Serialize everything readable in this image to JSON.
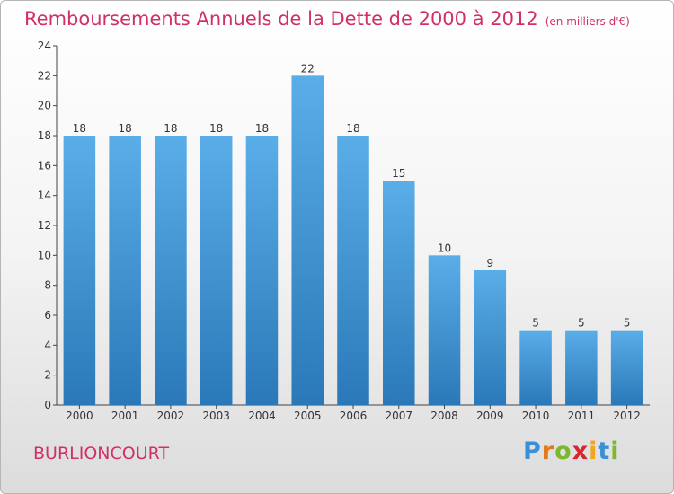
{
  "title": {
    "main": "Remboursements Annuels de la Dette de 2000 à 2012",
    "unit": "(en milliers d'€)"
  },
  "town": "BURLIONCOURT",
  "logo": {
    "letters": [
      "P",
      "r",
      "o",
      "x",
      "i",
      "t",
      "i"
    ]
  },
  "colors": {
    "title": "#d0306a",
    "bar_top": "#5aaee8",
    "bar_bottom": "#2a78b8"
  },
  "chart_data": {
    "type": "bar",
    "categories": [
      "2000",
      "2001",
      "2002",
      "2003",
      "2004",
      "2005",
      "2006",
      "2007",
      "2008",
      "2009",
      "2010",
      "2011",
      "2012"
    ],
    "values": [
      18,
      18,
      18,
      18,
      18,
      22,
      18,
      15,
      10,
      9,
      5,
      5,
      5
    ],
    "ylim": [
      0,
      24
    ],
    "yticks": [
      0,
      2,
      4,
      6,
      8,
      10,
      12,
      14,
      16,
      18,
      20,
      22,
      24
    ],
    "grid": false,
    "data_labels": true
  }
}
